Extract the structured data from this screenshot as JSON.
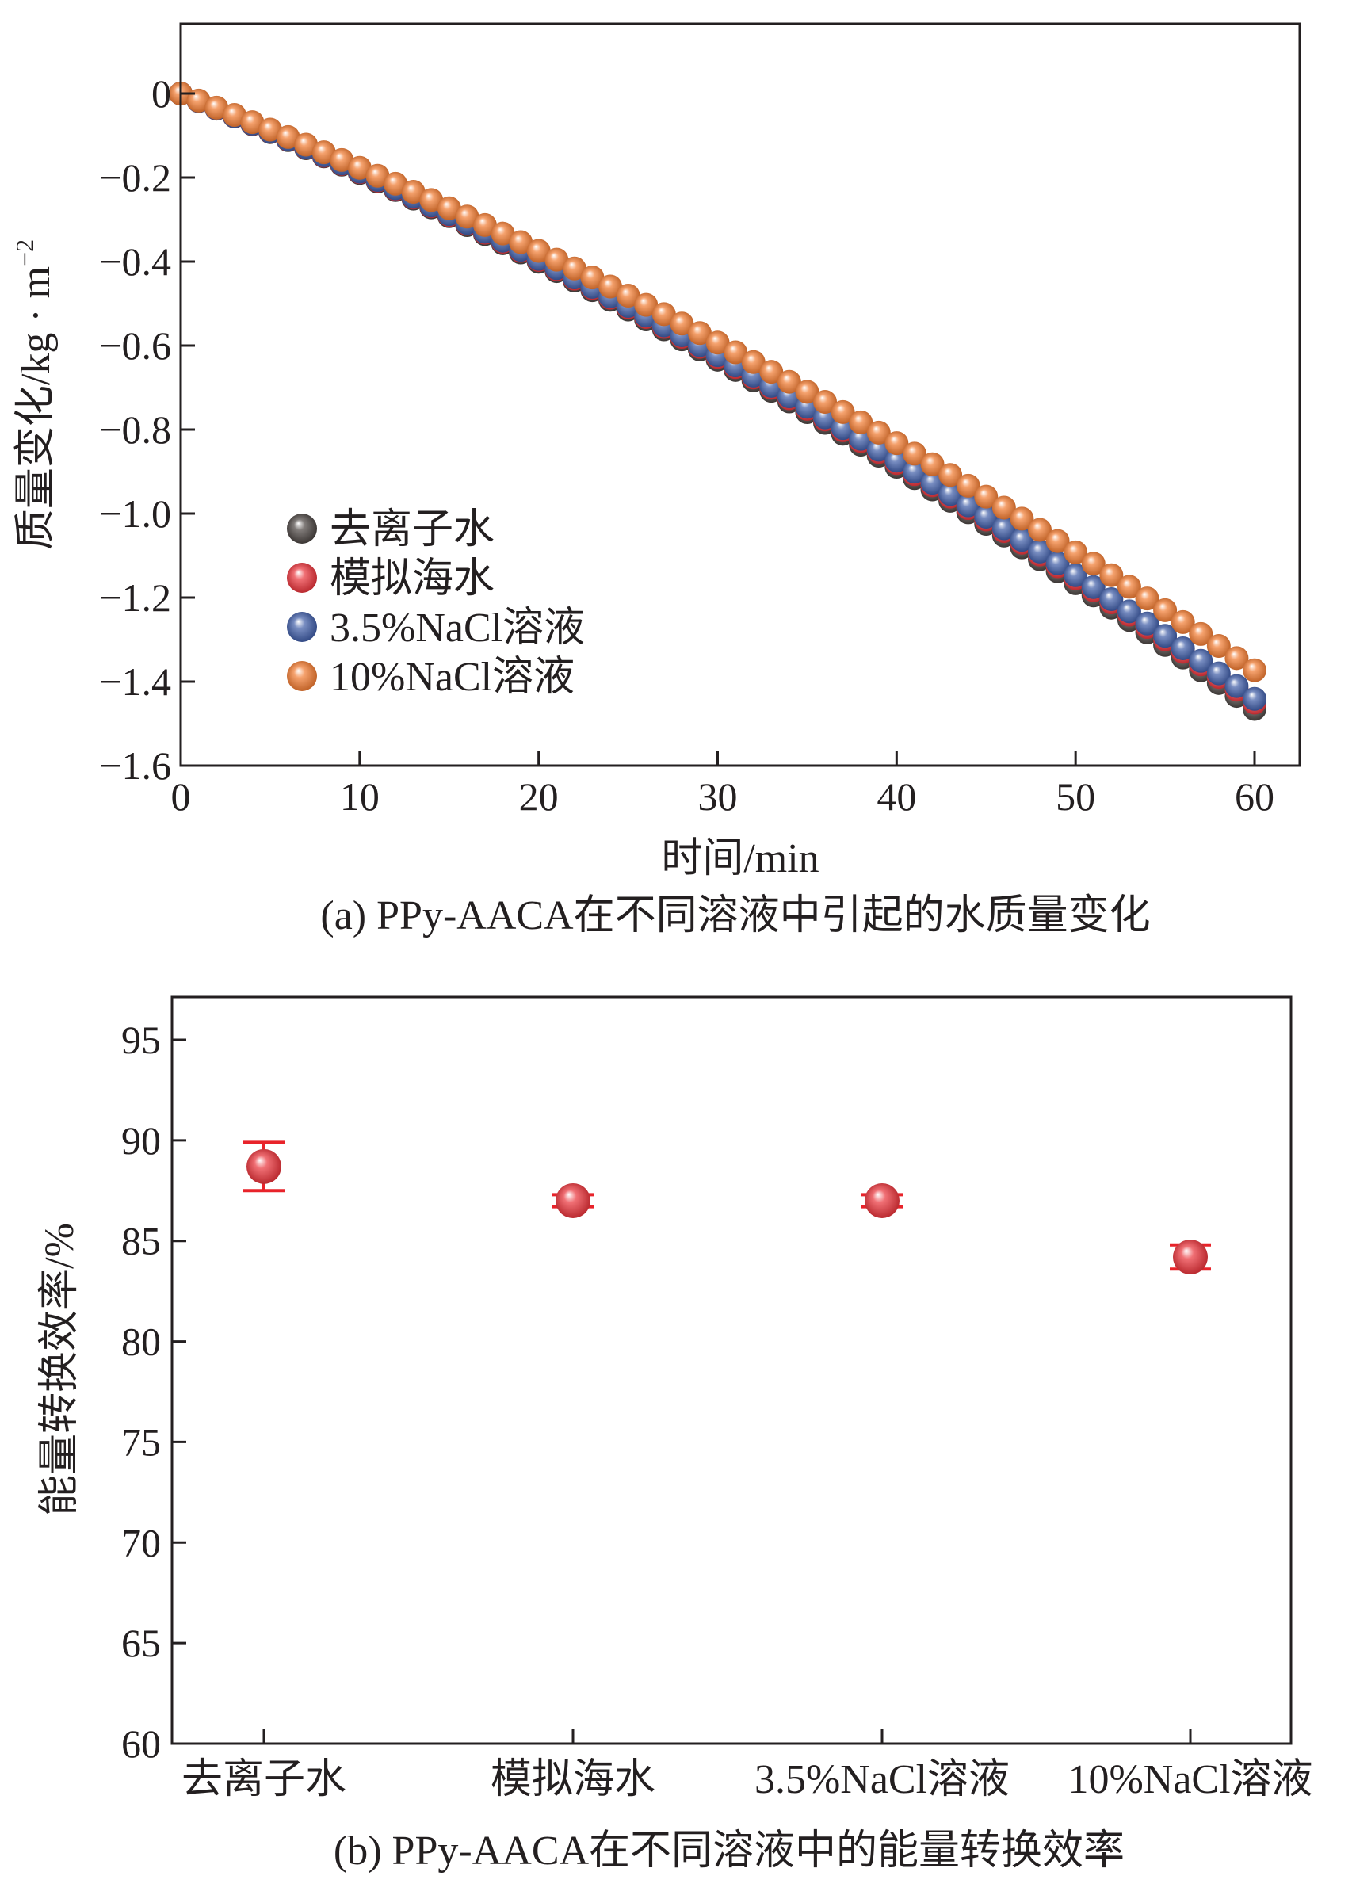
{
  "chart_data": [
    {
      "panel": "a",
      "type": "scatter",
      "caption": "(a) PPy-AACA在不同溶液中引起的水质量变化",
      "xlabel": "时间/min",
      "ylabel": "质量变化/kg · m",
      "ylabel_sup": "−2",
      "xlim": [
        0,
        62
      ],
      "ylim": [
        -1.6,
        0.15
      ],
      "xticks": [
        0,
        10,
        20,
        30,
        40,
        50,
        60
      ],
      "yticks": [
        0,
        -0.2,
        -0.4,
        -0.6,
        -0.8,
        -1.0,
        -1.2,
        -1.4,
        -1.6
      ],
      "xtick_labels": [
        "0",
        "10",
        "20",
        "30",
        "40",
        "50",
        "60"
      ],
      "ytick_labels": [
        "0",
        "−0.2",
        "−0.4",
        "−0.6",
        "−0.8",
        "−1.0",
        "−1.2",
        "−1.4",
        "−1.6"
      ],
      "grid": false,
      "legend_position": "lower-left",
      "x_step": 1,
      "series": [
        {
          "name": "去离子水",
          "color": "#3b3431",
          "end": -1.465,
          "curve": 0.27,
          "offset": 0.0
        },
        {
          "name": "模拟海水",
          "color": "#e8232a",
          "end": -1.45,
          "curve": 0.27,
          "offset": 0.0
        },
        {
          "name": "3.5%NaCl溶液",
          "color": "#2f4fa0",
          "end": -1.445,
          "curve": 0.27,
          "offset": 0.004
        },
        {
          "name": "10%NaCl溶液",
          "color": "#f07020",
          "end": -1.385,
          "curve": 0.27,
          "offset": 0.012
        }
      ]
    },
    {
      "panel": "b",
      "type": "scatter",
      "caption": "(b) PPy-AACA在不同溶液中的能量转换效率",
      "xlabel": "",
      "ylabel": "能量转换效率/%",
      "ylim": [
        60,
        97
      ],
      "yticks": [
        60,
        65,
        70,
        75,
        80,
        85,
        90,
        95
      ],
      "ytick_labels": [
        "60",
        "65",
        "70",
        "75",
        "80",
        "85",
        "90",
        "95"
      ],
      "grid": false,
      "categories": [
        "去离子水",
        "模拟海水",
        "3.5%NaCl溶液",
        "10%NaCl溶液"
      ],
      "values": [
        88.7,
        87.0,
        87.0,
        84.2
      ],
      "errors": [
        1.2,
        0.3,
        0.3,
        0.6
      ],
      "color": "#e8232a"
    }
  ]
}
